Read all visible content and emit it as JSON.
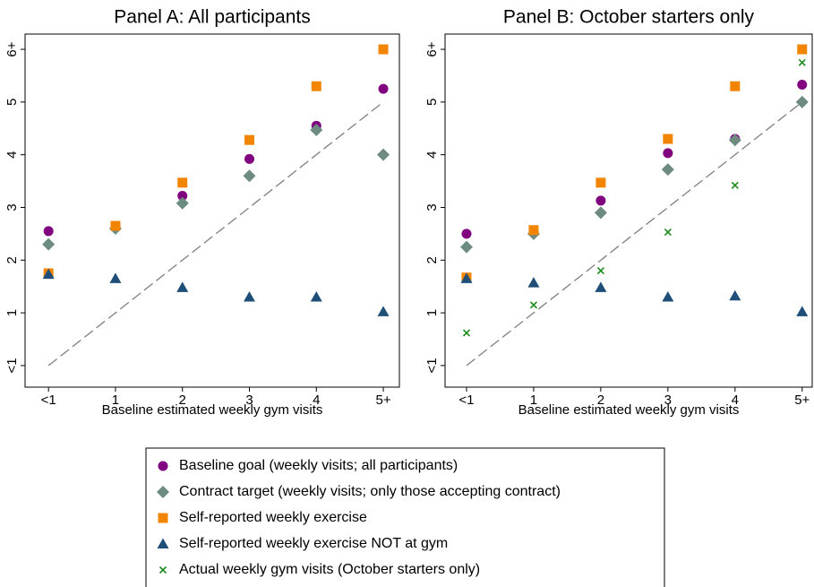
{
  "chart_data": [
    {
      "type": "scatter",
      "title": "Panel A: All participants",
      "xlabel": "Baseline estimated weekly gym visits",
      "x": [
        0,
        1,
        2,
        3,
        4,
        5
      ],
      "xlim": [
        -0.35,
        5.24
      ],
      "ylim": [
        -0.41,
        6.29
      ],
      "xticks": [
        {
          "value": 0,
          "label": "<1"
        },
        1,
        2,
        3,
        4,
        {
          "value": 5,
          "label": "5+"
        }
      ],
      "yticks": [
        {
          "value": 0,
          "label": "<1"
        },
        1,
        2,
        3,
        4,
        5,
        {
          "value": 6,
          "label": "6+"
        }
      ],
      "diagonal": {
        "x": [
          0,
          5
        ],
        "y": [
          0,
          5
        ],
        "color": "#7f7f7f"
      },
      "series": [
        {
          "color": "#800080",
          "marker": "circle",
          "values": [
            2.55,
            2.65,
            3.22,
            3.92,
            4.55,
            5.25
          ]
        },
        {
          "color": "#6e8b82",
          "marker": "diamond",
          "values": [
            2.3,
            2.6,
            3.08,
            3.6,
            4.47,
            4.0
          ]
        },
        {
          "color": "#f28500",
          "marker": "square",
          "values": [
            1.75,
            2.65,
            3.47,
            4.28,
            5.3,
            6.0
          ]
        },
        {
          "color": "#1f4e79",
          "marker": "triangle",
          "values": [
            1.73,
            1.65,
            1.48,
            1.3,
            1.3,
            1.02
          ]
        }
      ]
    },
    {
      "type": "scatter",
      "title": "Panel B: October starters only",
      "xlabel": "Baseline estimated weekly gym visits",
      "x": [
        0,
        1,
        2,
        3,
        4,
        5
      ],
      "xlim": [
        -0.32,
        5.15
      ],
      "ylim": [
        -0.41,
        6.29
      ],
      "xticks": [
        {
          "value": 0,
          "label": "<1"
        },
        1,
        2,
        3,
        4,
        {
          "value": 5,
          "label": "5+"
        }
      ],
      "yticks": [
        {
          "value": 0,
          "label": "<1"
        },
        1,
        2,
        3,
        4,
        5,
        {
          "value": 6,
          "label": "6+"
        }
      ],
      "diagonal": {
        "x": [
          0,
          5
        ],
        "y": [
          0,
          5
        ],
        "color": "#7f7f7f"
      },
      "series": [
        {
          "name": "Baseline goal (weekly visits; all participants)",
          "color": "#800080",
          "marker": "circle",
          "values": [
            2.5,
            2.55,
            3.13,
            4.03,
            4.3,
            5.33
          ]
        },
        {
          "name": "Contract target (weekly visits; only those accepting contract)",
          "color": "#6e8b82",
          "marker": "diamond",
          "values": [
            2.25,
            2.5,
            2.9,
            3.72,
            4.28,
            5.0
          ]
        },
        {
          "name": "Self-reported weekly exercise",
          "color": "#f28500",
          "marker": "square",
          "values": [
            1.67,
            2.57,
            3.47,
            4.3,
            5.3,
            6.0
          ]
        },
        {
          "name": "Self-reported weekly exercise NOT at gym",
          "color": "#1f4e79",
          "marker": "triangle",
          "values": [
            1.65,
            1.57,
            1.48,
            1.3,
            1.32,
            1.02
          ]
        },
        {
          "name": "Actual weekly gym visits (October starters only)",
          "color": "#1a8a1a",
          "marker": "x",
          "values": [
            0.62,
            1.15,
            1.8,
            2.53,
            3.42,
            5.75
          ]
        }
      ]
    }
  ]
}
